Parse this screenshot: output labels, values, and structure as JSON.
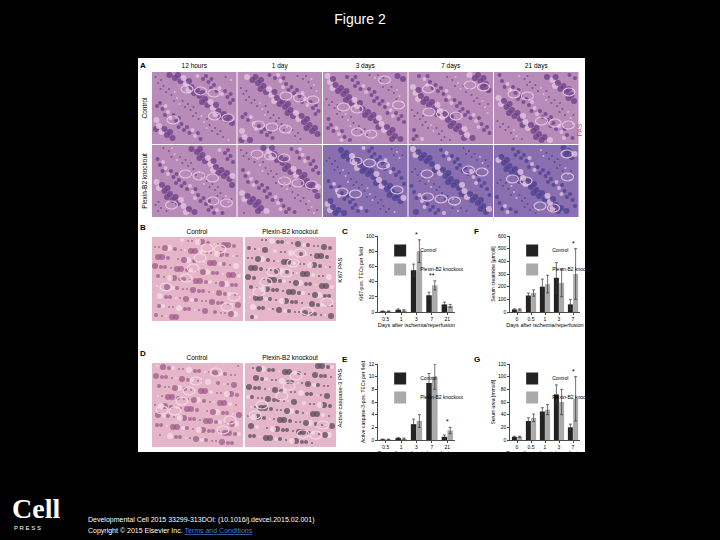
{
  "header": {
    "title": "Figure 2"
  },
  "panels": {
    "A": {
      "label": "A",
      "columns": [
        "12 hours",
        "1 day",
        "3 days",
        "7 days",
        "21 days"
      ],
      "rows": [
        "Control",
        "Plexin-B2 knockout"
      ],
      "stain": "PAS"
    },
    "B": {
      "label": "B",
      "images": [
        "Control",
        "Plexin-B2 knockout"
      ]
    },
    "D": {
      "label": "D",
      "images": [
        "Control",
        "Plexin-B2 knockout"
      ]
    }
  },
  "chart_data": [
    {
      "label": "C",
      "type": "bar",
      "side_label": "Ki67 PAS",
      "x_title": "Days after ischemia/reperfusion",
      "y_title": "Ki67-pos. TECs per field",
      "categories": [
        "0.5",
        "1",
        "3",
        "7",
        "21"
      ],
      "series": [
        {
          "name": "Control",
          "color": "#222222",
          "values": [
            1,
            3,
            55,
            22,
            10
          ],
          "errors": [
            0.5,
            1,
            8,
            4,
            3
          ]
        },
        {
          "name": "Plexin-B2 knockout",
          "color": "#aaaaaa",
          "values": [
            1,
            2,
            80,
            35,
            8
          ],
          "errors": [
            0.5,
            1,
            15,
            6,
            2
          ]
        }
      ],
      "ylim": [
        0,
        100
      ],
      "yticks": [
        0,
        20,
        40,
        60,
        80,
        100
      ],
      "annotations": [
        {
          "category": "3",
          "text": "*"
        },
        {
          "category": "7",
          "text": "**"
        }
      ],
      "legend": "top-left"
    },
    {
      "label": "F",
      "type": "bar",
      "x_title": "Days after ischemia/reperfusion",
      "y_title": "Serum creatinine [µmol/l]",
      "categories": [
        "0",
        "0.5",
        "1",
        "3",
        "7"
      ],
      "series": [
        {
          "name": "Control",
          "color": "#222222",
          "values": [
            20,
            130,
            200,
            270,
            60
          ],
          "errors": [
            5,
            20,
            60,
            120,
            40
          ]
        },
        {
          "name": "Plexin-B2 knockout",
          "color": "#aaaaaa",
          "values": [
            20,
            150,
            220,
            230,
            300
          ],
          "errors": [
            5,
            25,
            70,
            110,
            200
          ]
        }
      ],
      "ylim": [
        0,
        600
      ],
      "yticks": [
        0,
        100,
        200,
        300,
        400,
        500,
        600
      ],
      "annotations": [
        {
          "category": "7",
          "text": "*"
        }
      ],
      "legend": "top-left"
    },
    {
      "label": "E",
      "type": "bar",
      "side_label": "Active caspase-3 PAS",
      "x_title": "Days after ischemia/reperfusion",
      "y_title": "Active caspase-3-pos. TECs per field",
      "categories": [
        "0.5",
        "1",
        "3",
        "7",
        "21"
      ],
      "series": [
        {
          "name": "Control",
          "color": "#222222",
          "values": [
            0.1,
            0.3,
            2.5,
            9,
            0.5
          ],
          "errors": [
            0.05,
            0.1,
            0.8,
            1.5,
            0.3
          ]
        },
        {
          "name": "Plexin-B2 knockout",
          "color": "#aaaaaa",
          "values": [
            0.1,
            0.2,
            3,
            10,
            1.5
          ],
          "errors": [
            0.05,
            0.1,
            1,
            2,
            0.5
          ]
        }
      ],
      "ylim": [
        0,
        12
      ],
      "yticks": [
        0,
        2,
        4,
        6,
        8,
        10,
        12
      ],
      "annotations": [
        {
          "category": "21",
          "text": "*"
        }
      ],
      "legend": "top-left"
    },
    {
      "label": "G",
      "type": "bar",
      "x_title": "Days after ischemia/reperfusion",
      "y_title": "Serum urea [mmol/l]",
      "categories": [
        "0",
        "0.5",
        "1",
        "3",
        "7"
      ],
      "series": [
        {
          "name": "Control",
          "color": "#222222",
          "values": [
            5,
            30,
            45,
            72,
            20
          ],
          "errors": [
            1,
            5,
            6,
            15,
            5
          ]
        },
        {
          "name": "Plexin-B2 knockout",
          "color": "#aaaaaa",
          "values": [
            5,
            35,
            48,
            60,
            65
          ],
          "errors": [
            1,
            6,
            8,
            20,
            35
          ]
        }
      ],
      "ylim": [
        0,
        120
      ],
      "yticks": [
        0,
        20,
        40,
        60,
        80,
        100,
        120
      ],
      "annotations": [
        {
          "category": "7",
          "text": "*"
        }
      ],
      "legend": "top-left"
    }
  ],
  "footer": {
    "journal": "Cell",
    "press": "P R E S S",
    "citation": "Developmental Cell 2015 33299-313DOI: (10.1016/j.devcel.2015.02.001)",
    "copyright": "Copyright © 2015 Elsevier Inc.",
    "link": "Terms and Conditions"
  }
}
